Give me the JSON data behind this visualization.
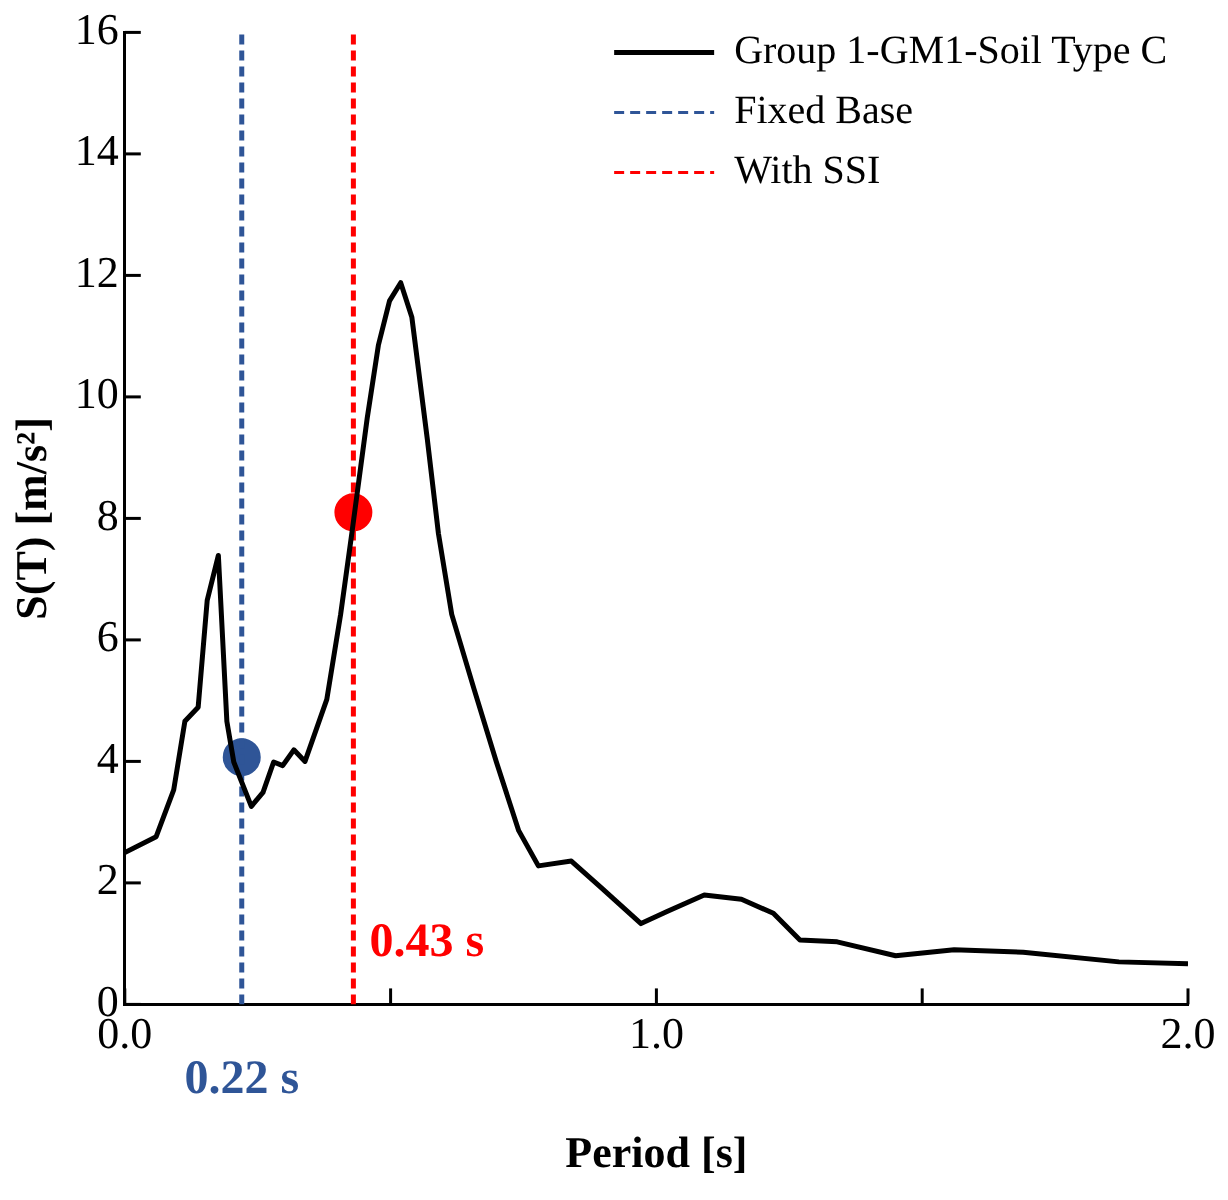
{
  "chart_data": {
    "type": "line",
    "xlabel": "Period [s]",
    "ylabel": "S(T) [m/s²]",
    "xlim": [
      0,
      2
    ],
    "xticks": [
      {
        "value": 0,
        "label": "0.0"
      },
      {
        "value": 0.5,
        "label": null
      },
      {
        "value": 1,
        "label": "1.0"
      },
      {
        "value": 1.5,
        "label": null
      },
      {
        "value": 2,
        "label": "2.0"
      }
    ],
    "ylim": [
      0,
      16
    ],
    "yticks": [
      0,
      2,
      4,
      6,
      8,
      10,
      12,
      14,
      16
    ],
    "grid": false,
    "legend": "top right",
    "marker": "none",
    "line_style": "solid",
    "series": [
      {
        "name": "Group 1-GM1-Soil Type C",
        "color": "#000000",
        "x": [
          0,
          0.059,
          0.092,
          0.113,
          0.138,
          0.155,
          0.176,
          0.192,
          0.205,
          0.238,
          0.26,
          0.28,
          0.297,
          0.318,
          0.339,
          0.38,
          0.406,
          0.427,
          0.456,
          0.477,
          0.498,
          0.519,
          0.54,
          0.569,
          0.59,
          0.615,
          0.657,
          0.699,
          0.741,
          0.778,
          0.84,
          0.895,
          0.971,
          1.02,
          1.09,
          1.16,
          1.22,
          1.27,
          1.34,
          1.45,
          1.56,
          1.69,
          1.87,
          2.0
        ],
        "values": [
          2.5,
          2.76,
          3.53,
          4.66,
          4.89,
          6.65,
          7.39,
          4.66,
          3.99,
          3.26,
          3.49,
          3.99,
          3.93,
          4.19,
          4.0,
          5.02,
          6.42,
          7.75,
          9.65,
          10.85,
          11.58,
          11.88,
          11.31,
          9.31,
          7.75,
          6.42,
          5.19,
          3.99,
          2.86,
          2.28,
          2.36,
          1.93,
          1.33,
          1.53,
          1.8,
          1.73,
          1.5,
          1.06,
          1.03,
          0.8,
          0.9,
          0.86,
          0.7,
          0.67
        ]
      },
      {
        "name": "Fixed Base",
        "color": "#2f5597",
        "line_style": "dashed",
        "x": [
          0.22,
          0.22
        ],
        "values": [
          0,
          16
        ]
      },
      {
        "name": "With SSI",
        "color": "#ff0000",
        "line_style": "dashed",
        "x": [
          0.43,
          0.43
        ],
        "values": [
          0,
          16
        ]
      },
      {
        "type": "scatter",
        "marker": "circle",
        "color": "#2f5597",
        "x": [
          0.22
        ],
        "values": [
          4.07
        ]
      },
      {
        "type": "scatter",
        "marker": "circle",
        "color": "#ff0000",
        "x": [
          0.43
        ],
        "values": [
          8.1
        ]
      }
    ],
    "annotations": [
      "0.22 s",
      {
        "text": "0.43 s",
        "x": 0.43,
        "y": 1.0
      }
    ]
  }
}
